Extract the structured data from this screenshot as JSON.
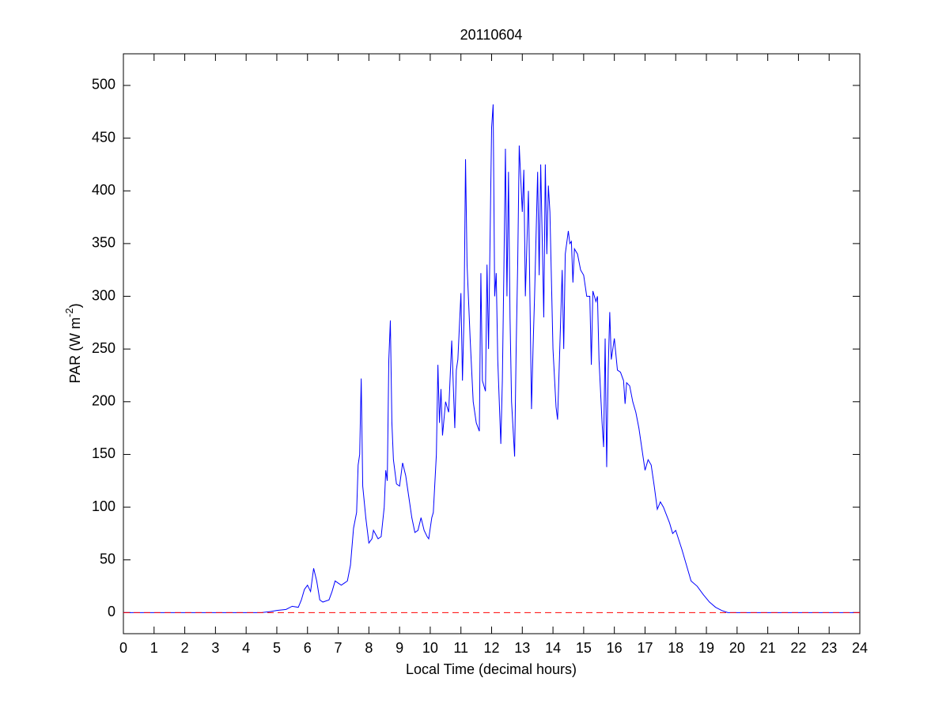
{
  "chart_data": {
    "type": "line",
    "title": "20110604",
    "xlabel": "Local Time (decimal hours)",
    "ylabel": [
      "PAR (W m",
      "-2",
      ")"
    ],
    "xlim": [
      0,
      24
    ],
    "ylim": [
      -20,
      530
    ],
    "xticks": [
      0,
      1,
      2,
      3,
      4,
      5,
      6,
      7,
      8,
      9,
      10,
      11,
      12,
      13,
      14,
      15,
      16,
      17,
      18,
      19,
      20,
      21,
      22,
      23,
      24
    ],
    "yticks": [
      0,
      50,
      100,
      150,
      200,
      250,
      300,
      350,
      400,
      450,
      500
    ],
    "grid": false,
    "reference_line": {
      "value": 0,
      "color": "#ff0000",
      "style": "dashed"
    },
    "series": [
      {
        "color": "#0000ff",
        "x": [
          0,
          4.5,
          4.8,
          5.0,
          5.3,
          5.5,
          5.7,
          5.8,
          5.9,
          6.0,
          6.1,
          6.2,
          6.3,
          6.4,
          6.5,
          6.7,
          6.8,
          6.9,
          7.0,
          7.1,
          7.2,
          7.3,
          7.4,
          7.5,
          7.6,
          7.65,
          7.7,
          7.75,
          7.8,
          7.9,
          8.0,
          8.1,
          8.15,
          8.3,
          8.4,
          8.5,
          8.55,
          8.6,
          8.65,
          8.7,
          8.75,
          8.8,
          8.9,
          9.0,
          9.1,
          9.2,
          9.3,
          9.4,
          9.5,
          9.6,
          9.7,
          9.8,
          9.9,
          9.95,
          10.0,
          10.05,
          10.1,
          10.2,
          10.25,
          10.3,
          10.35,
          10.4,
          10.5,
          10.6,
          10.7,
          10.8,
          10.85,
          10.9,
          11.0,
          11.05,
          11.1,
          11.15,
          11.2,
          11.3,
          11.4,
          11.5,
          11.6,
          11.65,
          11.7,
          11.8,
          11.85,
          11.9,
          12.0,
          12.05,
          12.1,
          12.15,
          12.2,
          12.3,
          12.35,
          12.4,
          12.45,
          12.5,
          12.55,
          12.6,
          12.65,
          12.75,
          12.8,
          12.85,
          12.9,
          13.0,
          13.05,
          13.1,
          13.2,
          13.3,
          13.35,
          13.4,
          13.5,
          13.55,
          13.6,
          13.7,
          13.75,
          13.8,
          13.85,
          13.9,
          14.0,
          14.1,
          14.15,
          14.2,
          14.3,
          14.35,
          14.4,
          14.5,
          14.55,
          14.6,
          14.65,
          14.7,
          14.8,
          14.9,
          15.0,
          15.1,
          15.2,
          15.25,
          15.3,
          15.4,
          15.45,
          15.5,
          15.6,
          15.65,
          15.7,
          15.75,
          15.8,
          15.85,
          15.9,
          16.0,
          16.1,
          16.2,
          16.3,
          16.35,
          16.4,
          16.5,
          16.6,
          16.7,
          16.8,
          16.9,
          17.0,
          17.1,
          17.2,
          17.3,
          17.4,
          17.5,
          17.6,
          17.8,
          17.9,
          18.0,
          18.2,
          18.4,
          18.5,
          18.7,
          18.9,
          19.1,
          19.3,
          19.5,
          19.7,
          20.0,
          24
        ],
        "values": [
          0,
          0,
          1,
          2,
          3,
          6,
          5,
          12,
          22,
          26,
          20,
          42,
          30,
          12,
          10,
          12,
          20,
          30,
          28,
          26,
          28,
          30,
          45,
          80,
          95,
          140,
          150,
          222,
          120,
          90,
          66,
          70,
          78,
          70,
          72,
          100,
          135,
          125,
          240,
          277,
          180,
          145,
          122,
          120,
          142,
          130,
          110,
          90,
          76,
          78,
          90,
          78,
          72,
          70,
          80,
          90,
          95,
          150,
          235,
          180,
          212,
          168,
          200,
          190,
          258,
          175,
          230,
          240,
          303,
          220,
          280,
          430,
          330,
          260,
          200,
          180,
          172,
          322,
          220,
          210,
          330,
          250,
          460,
          482,
          300,
          322,
          240,
          160,
          220,
          325,
          440,
          300,
          418,
          280,
          200,
          148,
          250,
          330,
          443,
          380,
          420,
          300,
          400,
          193,
          250,
          300,
          418,
          320,
          425,
          280,
          425,
          340,
          405,
          380,
          250,
          195,
          183,
          230,
          325,
          250,
          340,
          362,
          350,
          352,
          313,
          345,
          340,
          325,
          320,
          300,
          300,
          235,
          305,
          295,
          300,
          240,
          180,
          157,
          260,
          138,
          230,
          285,
          240,
          260,
          230,
          228,
          220,
          198,
          218,
          215,
          200,
          190,
          175,
          155,
          135,
          145,
          140,
          120,
          98,
          105,
          100,
          85,
          75,
          78,
          60,
          40,
          30,
          25,
          17,
          10,
          5,
          2,
          0,
          0,
          0
        ]
      }
    ]
  }
}
